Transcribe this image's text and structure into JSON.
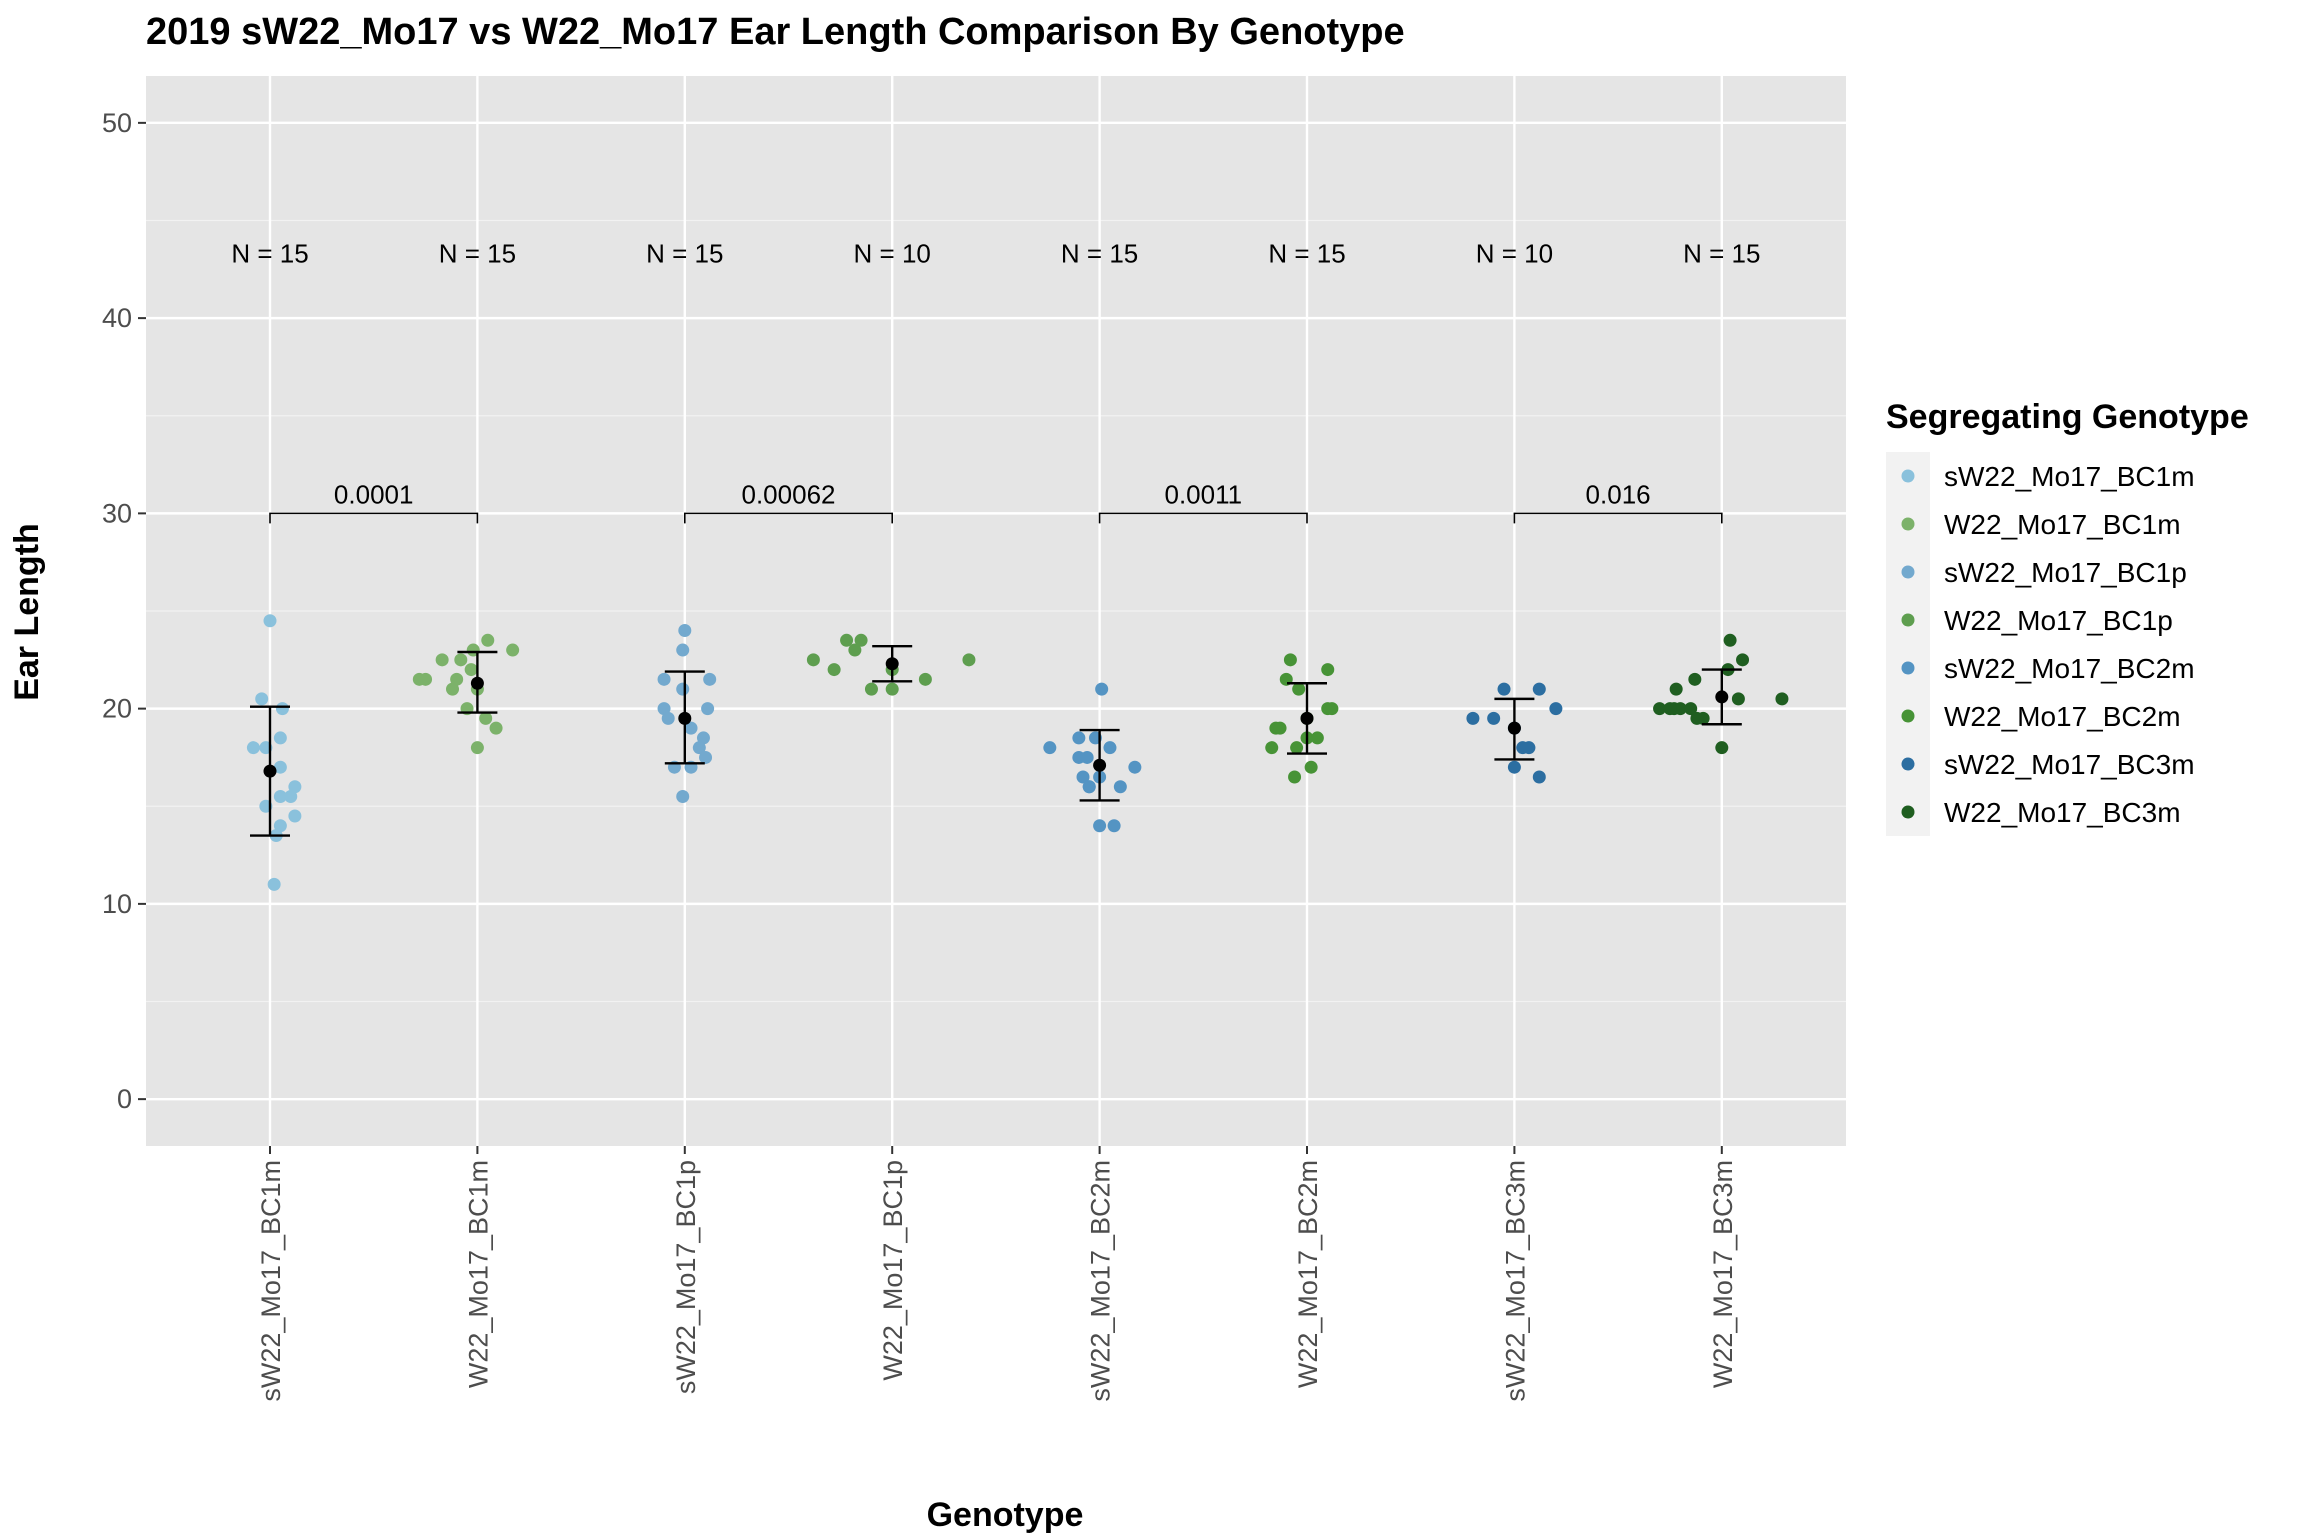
{
  "chart_data": {
    "type": "scatter",
    "title": "2019 sW22_Mo17 vs W22_Mo17 Ear Length Comparison By Genotype",
    "xlabel": "Genotype",
    "ylabel": "Ear Length",
    "ylim": [
      -2.4,
      52.4
    ],
    "yticks": [
      0,
      10,
      20,
      30,
      40,
      50
    ],
    "categories": [
      "sW22_Mo17_BC1m",
      "W22_Mo17_BC1m",
      "sW22_Mo17_BC1p",
      "W22_Mo17_BC1p",
      "sW22_Mo17_BC2m",
      "W22_Mo17_BC2m",
      "sW22_Mo17_BC3m",
      "W22_Mo17_BC3m"
    ],
    "legend": {
      "title": "Segregating Genotype",
      "position": "right",
      "entries": [
        "sW22_Mo17_BC1m",
        "W22_Mo17_BC1m",
        "sW22_Mo17_BC1p",
        "W22_Mo17_BC1p",
        "sW22_Mo17_BC2m",
        "W22_Mo17_BC2m",
        "sW22_Mo17_BC3m",
        "W22_Mo17_BC3m"
      ]
    },
    "series": [
      {
        "name": "sW22_Mo17_BC1m",
        "color": "#8ac1dc",
        "n_label": "N = 15",
        "mean": 16.8,
        "ci": [
          13.5,
          20.1
        ],
        "points": [
          {
            "dx": 0.0,
            "y": 24.5
          },
          {
            "dx": -0.04,
            "y": 20.5
          },
          {
            "dx": 0.06,
            "y": 20.0
          },
          {
            "dx": 0.05,
            "y": 18.5
          },
          {
            "dx": -0.08,
            "y": 18.0
          },
          {
            "dx": -0.02,
            "y": 18.0
          },
          {
            "dx": 0.05,
            "y": 17.0
          },
          {
            "dx": 0.12,
            "y": 16.0
          },
          {
            "dx": 0.05,
            "y": 15.5
          },
          {
            "dx": 0.1,
            "y": 15.5
          },
          {
            "dx": -0.02,
            "y": 15.0
          },
          {
            "dx": 0.12,
            "y": 14.5
          },
          {
            "dx": 0.05,
            "y": 14.0
          },
          {
            "dx": 0.03,
            "y": 13.5
          },
          {
            "dx": 0.02,
            "y": 11.0
          }
        ]
      },
      {
        "name": "W22_Mo17_BC1m",
        "color": "#7cb26a",
        "n_label": "N = 15",
        "mean": 21.3,
        "ci": [
          19.8,
          22.9
        ],
        "points": [
          {
            "dx": 0.05,
            "y": 23.5
          },
          {
            "dx": 0.17,
            "y": 23.0
          },
          {
            "dx": -0.02,
            "y": 23.0
          },
          {
            "dx": -0.17,
            "y": 22.5
          },
          {
            "dx": -0.08,
            "y": 22.5
          },
          {
            "dx": -0.03,
            "y": 22.0
          },
          {
            "dx": -0.25,
            "y": 21.5
          },
          {
            "dx": -0.28,
            "y": 21.5
          },
          {
            "dx": -0.1,
            "y": 21.5
          },
          {
            "dx": -0.12,
            "y": 21.0
          },
          {
            "dx": 0.0,
            "y": 21.0
          },
          {
            "dx": -0.05,
            "y": 20.0
          },
          {
            "dx": 0.04,
            "y": 19.5
          },
          {
            "dx": 0.09,
            "y": 19.0
          },
          {
            "dx": 0.0,
            "y": 18.0
          }
        ]
      },
      {
        "name": "sW22_Mo17_BC1p",
        "color": "#73a9ce",
        "n_label": "N = 15",
        "mean": 19.5,
        "ci": [
          17.2,
          21.9
        ],
        "points": [
          {
            "dx": 0.0,
            "y": 24.0
          },
          {
            "dx": -0.01,
            "y": 23.0
          },
          {
            "dx": -0.1,
            "y": 21.5
          },
          {
            "dx": 0.12,
            "y": 21.5
          },
          {
            "dx": -0.01,
            "y": 21.0
          },
          {
            "dx": -0.1,
            "y": 20.0
          },
          {
            "dx": 0.11,
            "y": 20.0
          },
          {
            "dx": -0.08,
            "y": 19.5
          },
          {
            "dx": 0.03,
            "y": 19.0
          },
          {
            "dx": 0.09,
            "y": 18.5
          },
          {
            "dx": 0.07,
            "y": 18.0
          },
          {
            "dx": 0.1,
            "y": 17.5
          },
          {
            "dx": -0.05,
            "y": 17.0
          },
          {
            "dx": 0.03,
            "y": 17.0
          },
          {
            "dx": -0.01,
            "y": 15.5
          }
        ]
      },
      {
        "name": "W22_Mo17_BC1p",
        "color": "#5e9e4f",
        "n_label": "N = 10",
        "mean": 22.3,
        "ci": [
          21.4,
          23.2
        ],
        "points": [
          {
            "dx": -0.22,
            "y": 23.5
          },
          {
            "dx": -0.15,
            "y": 23.5
          },
          {
            "dx": -0.38,
            "y": 22.5
          },
          {
            "dx": 0.37,
            "y": 22.5
          },
          {
            "dx": -0.28,
            "y": 22.0
          },
          {
            "dx": -0.18,
            "y": 23.0
          },
          {
            "dx": -0.1,
            "y": 21.0
          },
          {
            "dx": 0.0,
            "y": 21.0
          },
          {
            "dx": 0.16,
            "y": 21.5
          },
          {
            "dx": 0.0,
            "y": 22.0
          }
        ]
      },
      {
        "name": "sW22_Mo17_BC2m",
        "color": "#5494c3",
        "n_label": "N = 15",
        "mean": 17.1,
        "ci": [
          15.3,
          18.9
        ],
        "points": [
          {
            "dx": 0.01,
            "y": 21.0
          },
          {
            "dx": -0.1,
            "y": 18.5
          },
          {
            "dx": -0.02,
            "y": 18.5
          },
          {
            "dx": -0.24,
            "y": 18.0
          },
          {
            "dx": 0.05,
            "y": 18.0
          },
          {
            "dx": -0.1,
            "y": 17.5
          },
          {
            "dx": -0.06,
            "y": 17.5
          },
          {
            "dx": 0.17,
            "y": 17.0
          },
          {
            "dx": -0.08,
            "y": 16.5
          },
          {
            "dx": -0.05,
            "y": 16.0
          },
          {
            "dx": 0.1,
            "y": 16.0
          },
          {
            "dx": -0.05,
            "y": 16.0
          },
          {
            "dx": 0.0,
            "y": 16.5
          },
          {
            "dx": 0.0,
            "y": 14.0
          },
          {
            "dx": 0.07,
            "y": 14.0
          }
        ]
      },
      {
        "name": "W22_Mo17_BC2m",
        "color": "#479336",
        "n_label": "N = 15",
        "mean": 19.5,
        "ci": [
          17.7,
          21.3
        ],
        "points": [
          {
            "dx": -0.08,
            "y": 22.5
          },
          {
            "dx": 0.1,
            "y": 22.0
          },
          {
            "dx": -0.1,
            "y": 21.5
          },
          {
            "dx": -0.04,
            "y": 21.0
          },
          {
            "dx": 0.1,
            "y": 20.0
          },
          {
            "dx": 0.12,
            "y": 20.0
          },
          {
            "dx": -0.15,
            "y": 19.0
          },
          {
            "dx": -0.13,
            "y": 19.0
          },
          {
            "dx": 0.0,
            "y": 18.5
          },
          {
            "dx": 0.05,
            "y": 18.5
          },
          {
            "dx": -0.17,
            "y": 18.0
          },
          {
            "dx": -0.05,
            "y": 18.0
          },
          {
            "dx": 0.02,
            "y": 17.0
          },
          {
            "dx": -0.06,
            "y": 16.5
          },
          {
            "dx": 0.0,
            "y": 19.5
          }
        ]
      },
      {
        "name": "sW22_Mo17_BC3m",
        "color": "#2c6ea1",
        "n_label": "N = 10",
        "mean": 19.0,
        "ci": [
          17.4,
          20.5
        ],
        "points": [
          {
            "dx": -0.05,
            "y": 21.0
          },
          {
            "dx": 0.12,
            "y": 21.0
          },
          {
            "dx": -0.2,
            "y": 19.5
          },
          {
            "dx": -0.1,
            "y": 19.5
          },
          {
            "dx": 0.2,
            "y": 20.0
          },
          {
            "dx": 0.04,
            "y": 18.0
          },
          {
            "dx": 0.07,
            "y": 18.0
          },
          {
            "dx": 0.0,
            "y": 17.0
          },
          {
            "dx": 0.12,
            "y": 16.5
          },
          {
            "dx": 0.0,
            "y": 19.0
          }
        ]
      },
      {
        "name": "W22_Mo17_BC3m",
        "color": "#1f5e20",
        "n_label": "N = 15",
        "mean": 20.6,
        "ci": [
          19.2,
          22.0
        ],
        "points": [
          {
            "dx": 0.04,
            "y": 23.5
          },
          {
            "dx": 0.1,
            "y": 22.5
          },
          {
            "dx": 0.03,
            "y": 22.0
          },
          {
            "dx": -0.13,
            "y": 21.5
          },
          {
            "dx": -0.22,
            "y": 21.0
          },
          {
            "dx": 0.29,
            "y": 20.5
          },
          {
            "dx": -0.3,
            "y": 20.0
          },
          {
            "dx": -0.23,
            "y": 20.0
          },
          {
            "dx": -0.2,
            "y": 20.0
          },
          {
            "dx": -0.15,
            "y": 20.0
          },
          {
            "dx": -0.25,
            "y": 20.0
          },
          {
            "dx": -0.09,
            "y": 19.5
          },
          {
            "dx": -0.12,
            "y": 19.5
          },
          {
            "dx": 0.08,
            "y": 20.5
          },
          {
            "dx": 0.0,
            "y": 18.0
          }
        ]
      }
    ],
    "comparisons": [
      {
        "from": 0,
        "to": 1,
        "y": 30,
        "label": "0.0001"
      },
      {
        "from": 2,
        "to": 3,
        "y": 30,
        "label": "0.00062"
      },
      {
        "from": 4,
        "to": 5,
        "y": 30,
        "label": "0.0011"
      },
      {
        "from": 6,
        "to": 7,
        "y": 30,
        "label": "0.016"
      }
    ],
    "n_label_y": 43.3
  }
}
